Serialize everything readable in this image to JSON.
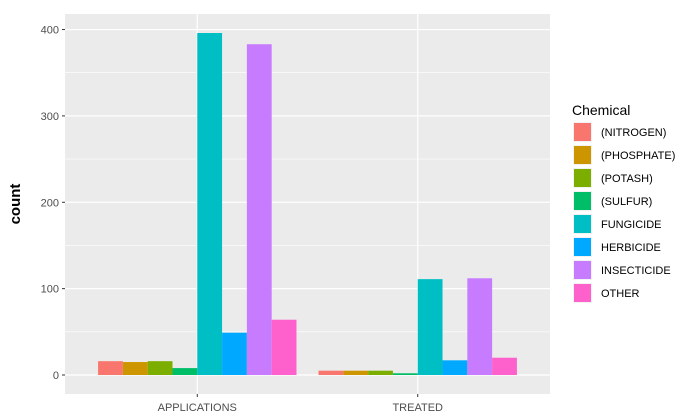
{
  "chart_data": {
    "type": "bar",
    "categories": [
      "APPLICATIONS",
      "TREATED"
    ],
    "series": [
      {
        "name": "(NITROGEN)",
        "values": [
          16,
          5
        ],
        "color": "#F8766D"
      },
      {
        "name": "(PHOSPHATE)",
        "values": [
          15,
          5
        ],
        "color": "#CD9600"
      },
      {
        "name": "(POTASH)",
        "values": [
          16,
          5
        ],
        "color": "#7CAE00"
      },
      {
        "name": "(SULFUR)",
        "values": [
          8,
          2
        ],
        "color": "#00BE67"
      },
      {
        "name": "FUNGICIDE",
        "values": [
          396,
          111
        ],
        "color": "#00BFC4"
      },
      {
        "name": "HERBICIDE",
        "values": [
          49,
          17
        ],
        "color": "#00A9FF"
      },
      {
        "name": "INSECTICIDE",
        "values": [
          383,
          112
        ],
        "color": "#C77CFF"
      },
      {
        "name": "OTHER",
        "values": [
          64,
          20
        ],
        "color": "#FF61CC"
      }
    ],
    "title": "",
    "xlabel": "",
    "ylabel": "count",
    "ylim": [
      -22,
      418
    ],
    "yticks": [
      0,
      100,
      200,
      300,
      400
    ],
    "legend_title": "Chemical",
    "legend_position": "right",
    "grid": true
  }
}
